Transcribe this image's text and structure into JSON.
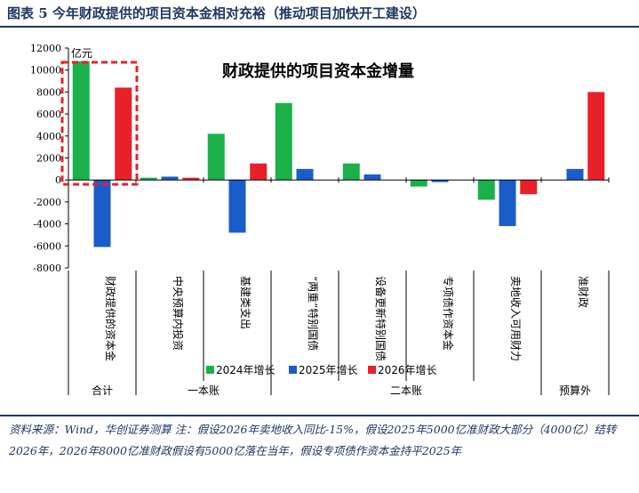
{
  "figure": {
    "caption": "图表 5   今年财政提供的项目资本金相对充裕（推动项目加快开工建设）",
    "source_note": "资料来源：Wind，华创证券测算  注：假设2026年卖地收入同比-15%，假设2025年5000亿准财政大部分（4000亿）结转2026年，2026年8000亿准财政假设有5000亿落在当年，假设专项债作资本金持平2025年"
  },
  "chart_data": {
    "type": "bar",
    "title": "财政提供的项目资本金增量",
    "ylabel": "亿元",
    "ylim": [
      -8000,
      12000
    ],
    "yticks": [
      -8000,
      -6000,
      -4000,
      -2000,
      0,
      2000,
      4000,
      6000,
      8000,
      10000,
      12000
    ],
    "categories": [
      "财政提供的资本金",
      "中央预算内投资",
      "基建类支出",
      "“两重”特别国债",
      "设备更新特别国债",
      "专项债作资本金",
      "卖地收入可用财力",
      "准财政"
    ],
    "series": [
      {
        "name": "2024年增长",
        "color": "#1ab04a",
        "values": [
          10800,
          200,
          4200,
          7000,
          1500,
          -600,
          -1800,
          0
        ]
      },
      {
        "name": "2025年增长",
        "color": "#1a5cc8",
        "values": [
          -6100,
          300,
          -4800,
          1000,
          500,
          -200,
          -4200,
          1000
        ]
      },
      {
        "name": "2026年增长",
        "color": "#e8202a",
        "values": [
          8400,
          200,
          1500,
          0,
          0,
          0,
          -1300,
          8000
        ]
      }
    ],
    "groups": [
      {
        "label": "合计",
        "span": [
          0,
          0
        ]
      },
      {
        "label": "一本账",
        "span": [
          1,
          2
        ]
      },
      {
        "label": "二本账",
        "span": [
          3,
          6
        ]
      },
      {
        "label": "预算外",
        "span": [
          7,
          7
        ]
      }
    ],
    "highlight_category": 0,
    "legend_position": "bottom-center",
    "grid": false
  }
}
